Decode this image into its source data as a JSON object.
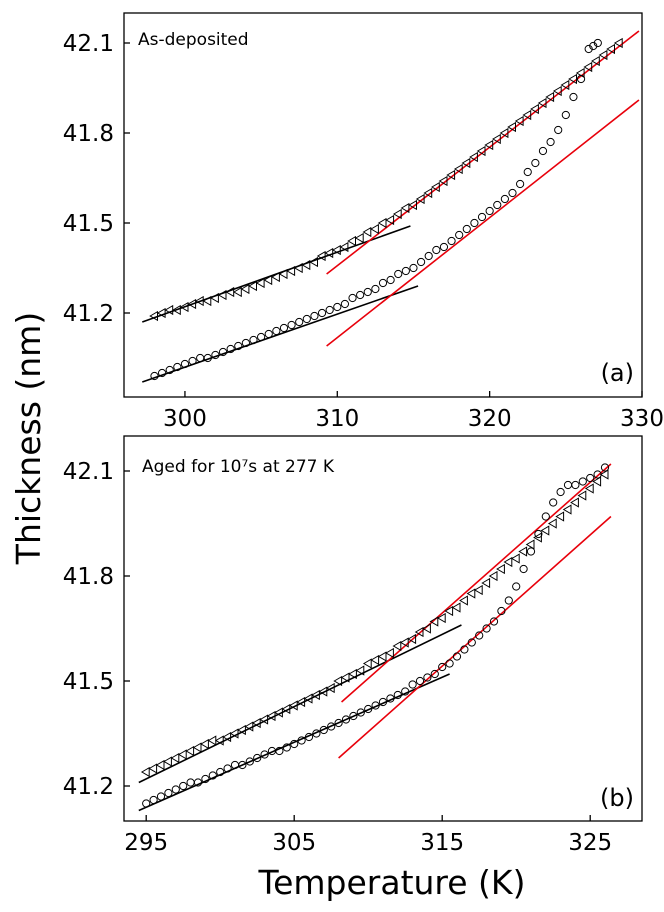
{
  "figure": {
    "ylabel": "Thickness (nm)",
    "xlabel": "Temperature (K)"
  },
  "chart_data": [
    {
      "type": "scatter",
      "panel_label": "(a)",
      "annotation": "As-deposited",
      "xlim": [
        296,
        330
      ],
      "ylim": [
        40.92,
        42.2
      ],
      "xticks": [
        300,
        310,
        320,
        330
      ],
      "yticks": [
        41.2,
        41.5,
        41.8,
        42.1
      ],
      "xtick_labels": [
        "300",
        "310",
        "320",
        "330"
      ],
      "ytick_labels": [
        "41.2",
        "41.5",
        "41.8",
        "42.1"
      ],
      "series": [
        {
          "name": "triangles",
          "marker": "triangle",
          "x": [
            298.0,
            298.5,
            299.0,
            299.5,
            300.0,
            300.5,
            301.0,
            301.5,
            302.0,
            302.5,
            303.0,
            303.5,
            304.0,
            304.5,
            305.0,
            305.5,
            306.0,
            306.5,
            307.0,
            307.5,
            308.0,
            308.5,
            309.0,
            309.5,
            310.0,
            310.5,
            311.0,
            311.5,
            312.0,
            312.5,
            313.0,
            313.5,
            314.0,
            314.5,
            315.0,
            315.5,
            316.0,
            316.5,
            317.0,
            317.5,
            318.0,
            318.5,
            319.0,
            319.5,
            320.0,
            320.5,
            321.0,
            321.5,
            322.0,
            322.5,
            323.0,
            323.5,
            324.0,
            324.5,
            325.0,
            325.5,
            326.0,
            326.5,
            327.0,
            327.5,
            328.0,
            328.5
          ],
          "y": [
            41.19,
            41.2,
            41.21,
            41.21,
            41.22,
            41.23,
            41.24,
            41.24,
            41.25,
            41.26,
            41.27,
            41.27,
            41.28,
            41.29,
            41.3,
            41.31,
            41.32,
            41.33,
            41.34,
            41.35,
            41.36,
            41.37,
            41.39,
            41.4,
            41.41,
            41.42,
            41.44,
            41.45,
            41.47,
            41.48,
            41.5,
            41.51,
            41.53,
            41.55,
            41.56,
            41.58,
            41.6,
            41.62,
            41.64,
            41.66,
            41.68,
            41.7,
            41.72,
            41.74,
            41.76,
            41.78,
            41.8,
            41.82,
            41.84,
            41.86,
            41.88,
            41.9,
            41.92,
            41.94,
            41.96,
            41.98,
            42.0,
            42.02,
            42.04,
            42.06,
            42.08,
            42.1
          ]
        },
        {
          "name": "circles",
          "marker": "circle",
          "x": [
            298.0,
            298.5,
            299.0,
            299.5,
            300.0,
            300.5,
            301.0,
            301.5,
            302.0,
            302.5,
            303.0,
            303.5,
            304.0,
            304.5,
            305.0,
            305.5,
            306.0,
            306.5,
            307.0,
            307.5,
            308.0,
            308.5,
            309.0,
            309.5,
            310.0,
            310.5,
            311.0,
            311.5,
            312.0,
            312.5,
            313.0,
            313.5,
            314.0,
            314.5,
            315.0,
            315.5,
            316.0,
            316.5,
            317.0,
            317.5,
            318.0,
            318.5,
            319.0,
            319.5,
            320.0,
            320.5,
            321.0,
            321.5,
            322.0,
            322.5,
            323.0,
            323.5,
            324.0,
            324.5,
            325.0,
            325.5,
            326.0,
            326.5,
            326.8,
            327.1
          ],
          "y": [
            40.99,
            41.0,
            41.01,
            41.02,
            41.03,
            41.04,
            41.05,
            41.05,
            41.06,
            41.07,
            41.08,
            41.09,
            41.1,
            41.11,
            41.12,
            41.13,
            41.14,
            41.15,
            41.16,
            41.17,
            41.18,
            41.19,
            41.2,
            41.21,
            41.22,
            41.23,
            41.25,
            41.26,
            41.27,
            41.28,
            41.3,
            41.31,
            41.33,
            41.34,
            41.35,
            41.37,
            41.39,
            41.41,
            41.42,
            41.44,
            41.46,
            41.48,
            41.5,
            41.52,
            41.54,
            41.56,
            41.58,
            41.6,
            41.63,
            41.67,
            41.7,
            41.74,
            41.77,
            41.81,
            41.86,
            41.92,
            41.98,
            42.08,
            42.09,
            42.1
          ]
        }
      ],
      "fit_lines": [
        {
          "color": "black",
          "x": [
            297.2,
            314.8
          ],
          "y": [
            41.17,
            41.49
          ]
        },
        {
          "color": "black",
          "x": [
            297.2,
            315.3
          ],
          "y": [
            40.97,
            41.29
          ]
        },
        {
          "color": "red",
          "x": [
            309.3,
            329.8
          ],
          "y": [
            41.33,
            42.14
          ]
        },
        {
          "color": "red",
          "x": [
            309.3,
            329.8
          ],
          "y": [
            41.09,
            41.91
          ]
        }
      ]
    },
    {
      "type": "scatter",
      "panel_label": "(b)",
      "annotation": "Aged for 10⁷s at 277 K",
      "xlim": [
        293.5,
        328.5
      ],
      "ylim": [
        41.1,
        42.2
      ],
      "xticks": [
        295,
        305,
        315,
        325
      ],
      "yticks": [
        41.2,
        41.5,
        41.8,
        42.1
      ],
      "xtick_labels": [
        "295",
        "305",
        "315",
        "325"
      ],
      "ytick_labels": [
        "41.2",
        "41.5",
        "41.8",
        "42.1"
      ],
      "series": [
        {
          "name": "triangles",
          "marker": "triangle",
          "x": [
            295.0,
            295.5,
            296.0,
            296.5,
            297.0,
            297.5,
            298.0,
            298.5,
            299.0,
            299.5,
            300.0,
            300.5,
            301.0,
            301.5,
            302.0,
            302.5,
            303.0,
            303.5,
            304.0,
            304.5,
            305.0,
            305.5,
            306.0,
            306.5,
            307.0,
            307.5,
            308.0,
            308.5,
            309.0,
            309.5,
            310.0,
            310.5,
            311.0,
            311.5,
            312.0,
            312.5,
            313.0,
            313.5,
            314.0,
            314.5,
            315.0,
            315.5,
            316.0,
            316.5,
            317.0,
            317.5,
            318.0,
            318.5,
            319.0,
            319.5,
            320.0,
            320.5,
            321.0,
            321.5,
            322.0,
            322.5,
            323.0,
            323.5,
            324.0,
            324.5,
            325.0,
            325.5,
            326.0
          ],
          "y": [
            41.24,
            41.25,
            41.26,
            41.27,
            41.28,
            41.29,
            41.3,
            41.31,
            41.32,
            41.33,
            41.33,
            41.34,
            41.35,
            41.36,
            41.37,
            41.38,
            41.39,
            41.4,
            41.41,
            41.42,
            41.43,
            41.44,
            41.45,
            41.46,
            41.47,
            41.48,
            41.5,
            41.51,
            41.52,
            41.53,
            41.55,
            41.56,
            41.57,
            41.58,
            41.6,
            41.61,
            41.62,
            41.64,
            41.65,
            41.67,
            41.68,
            41.7,
            41.71,
            41.73,
            41.75,
            41.76,
            41.78,
            41.8,
            41.82,
            41.84,
            41.85,
            41.87,
            41.89,
            41.91,
            41.93,
            41.95,
            41.97,
            41.99,
            42.01,
            42.03,
            42.05,
            42.07,
            42.09
          ]
        },
        {
          "name": "circles",
          "marker": "circle",
          "x": [
            295.0,
            295.5,
            296.0,
            296.5,
            297.0,
            297.5,
            298.0,
            298.5,
            299.0,
            299.5,
            300.0,
            300.5,
            301.0,
            301.5,
            302.0,
            302.5,
            303.0,
            303.5,
            304.0,
            304.5,
            305.0,
            305.5,
            306.0,
            306.5,
            307.0,
            307.5,
            308.0,
            308.5,
            309.0,
            309.5,
            310.0,
            310.5,
            311.0,
            311.5,
            312.0,
            312.5,
            313.0,
            313.5,
            314.0,
            314.5,
            315.0,
            315.5,
            316.0,
            316.5,
            317.0,
            317.5,
            318.0,
            318.5,
            319.0,
            319.5,
            320.0,
            320.5,
            321.0,
            321.5,
            322.0,
            322.5,
            323.0,
            323.5,
            324.0,
            324.5,
            325.0,
            325.5,
            326.0
          ],
          "y": [
            41.15,
            41.16,
            41.17,
            41.18,
            41.19,
            41.2,
            41.21,
            41.21,
            41.22,
            41.23,
            41.24,
            41.25,
            41.26,
            41.26,
            41.27,
            41.28,
            41.29,
            41.3,
            41.3,
            41.31,
            41.32,
            41.33,
            41.34,
            41.35,
            41.36,
            41.37,
            41.38,
            41.39,
            41.4,
            41.41,
            41.42,
            41.43,
            41.44,
            41.45,
            41.46,
            41.47,
            41.49,
            41.5,
            41.51,
            41.52,
            41.54,
            41.55,
            41.57,
            41.59,
            41.61,
            41.63,
            41.65,
            41.67,
            41.7,
            41.73,
            41.77,
            41.82,
            41.87,
            41.92,
            41.97,
            42.01,
            42.04,
            42.06,
            42.06,
            42.07,
            42.08,
            42.09,
            42.11
          ]
        }
      ],
      "fit_lines": [
        {
          "color": "black",
          "x": [
            294.5,
            316.3
          ],
          "y": [
            41.21,
            41.66
          ]
        },
        {
          "color": "black",
          "x": [
            294.5,
            315.5
          ],
          "y": [
            41.13,
            41.52
          ]
        },
        {
          "color": "red",
          "x": [
            308.2,
            326.4
          ],
          "y": [
            41.44,
            42.12
          ]
        },
        {
          "color": "red",
          "x": [
            308.0,
            326.4
          ],
          "y": [
            41.28,
            41.97
          ]
        }
      ]
    }
  ]
}
